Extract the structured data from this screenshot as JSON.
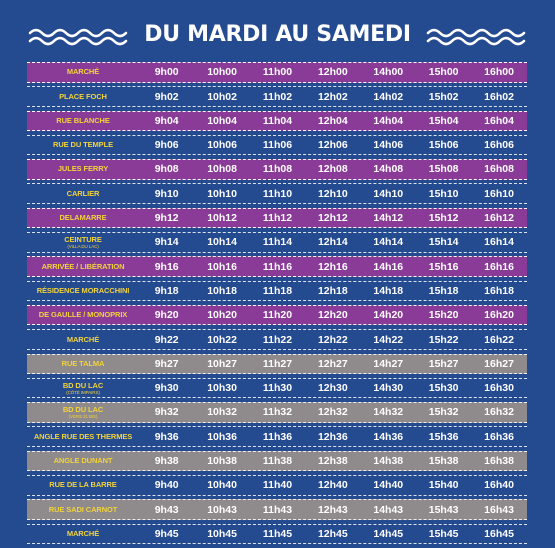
{
  "title": "DU MARDI AU SAMEDI",
  "rows": [
    {
      "stop": "MARCHÉ",
      "sub": "",
      "color": "purple",
      "times": [
        "9h00",
        "10h00",
        "11h00",
        "12h00",
        "14h00",
        "15h00",
        "16h00"
      ]
    },
    {
      "stop": "PLACE FOCH",
      "sub": "",
      "color": "blue",
      "times": [
        "9h02",
        "10h02",
        "11h02",
        "12h02",
        "14h02",
        "15h02",
        "16h02"
      ]
    },
    {
      "stop": "RUE BLANCHE",
      "sub": "",
      "color": "purple",
      "times": [
        "9h04",
        "10h04",
        "11h04",
        "12h04",
        "14h04",
        "15h04",
        "16h04"
      ]
    },
    {
      "stop": "RUE DU TEMPLE",
      "sub": "",
      "color": "blue",
      "times": [
        "9h06",
        "10h06",
        "11h06",
        "12h06",
        "14h06",
        "15h06",
        "16h06"
      ]
    },
    {
      "stop": "JULES FERRY",
      "sub": "",
      "color": "purple",
      "times": [
        "9h08",
        "10h08",
        "11h08",
        "12h08",
        "14h08",
        "15h08",
        "16h08"
      ]
    },
    {
      "stop": "CARLIER",
      "sub": "",
      "color": "blue",
      "times": [
        "9h10",
        "10h10",
        "11h10",
        "12h10",
        "14h10",
        "15h10",
        "16h10"
      ]
    },
    {
      "stop": "DELAMARRE",
      "sub": "",
      "color": "purple",
      "times": [
        "9h12",
        "10h12",
        "11h12",
        "12h12",
        "14h12",
        "15h12",
        "16h12"
      ]
    },
    {
      "stop": "CEINTURE",
      "sub": "(VILLA DU LAC)",
      "color": "blue",
      "times": [
        "9h14",
        "10h14",
        "11h14",
        "12h14",
        "14h14",
        "15h14",
        "16h14"
      ]
    },
    {
      "stop": "ARRIVÉE / LIBÉRATION",
      "sub": "",
      "color": "purple",
      "times": [
        "9h16",
        "10h16",
        "11h16",
        "12h16",
        "14h16",
        "15h16",
        "16h16"
      ]
    },
    {
      "stop": "RÉSIDENCE MORACCHINI",
      "sub": "",
      "color": "blue",
      "times": [
        "9h18",
        "10h18",
        "11h18",
        "12h18",
        "14h18",
        "15h18",
        "16h18"
      ]
    },
    {
      "stop": "DE GAULLE / MONOPRIX",
      "sub": "",
      "color": "purple",
      "times": [
        "9h20",
        "10h20",
        "11h20",
        "12h20",
        "14h20",
        "15h20",
        "16h20"
      ]
    },
    {
      "stop": "MARCHÉ",
      "sub": "",
      "color": "blue",
      "times": [
        "9h22",
        "10h22",
        "11h22",
        "12h22",
        "14h22",
        "15h22",
        "16h22"
      ]
    },
    {
      "stop": "RUE TALMA",
      "sub": "",
      "color": "gray",
      "times": [
        "9h27",
        "10h27",
        "11h27",
        "12h27",
        "14h27",
        "15h27",
        "16h27"
      ]
    },
    {
      "stop": "BD DU LAC",
      "sub": "(CÔTÉ IMPAIRS)",
      "color": "blue",
      "times": [
        "9h30",
        "10h30",
        "11h30",
        "12h30",
        "14h30",
        "15h30",
        "16h30"
      ]
    },
    {
      "stop": "BD DU LAC",
      "sub": "(VERS 21 BIS)",
      "color": "gray",
      "times": [
        "9h32",
        "10h32",
        "11h32",
        "12h32",
        "14h32",
        "15h32",
        "16h32"
      ]
    },
    {
      "stop": "ANGLE RUE DES THERMES",
      "sub": "",
      "color": "blue",
      "times": [
        "9h36",
        "10h36",
        "11h36",
        "12h36",
        "14h36",
        "15h36",
        "16h36"
      ]
    },
    {
      "stop": "ANGLE DUNANT",
      "sub": "",
      "color": "gray",
      "times": [
        "9h38",
        "10h38",
        "11h38",
        "12h38",
        "14h38",
        "15h38",
        "16h38"
      ]
    },
    {
      "stop": "RUE DE LA BARRE",
      "sub": "",
      "color": "blue",
      "times": [
        "9h40",
        "10h40",
        "11h40",
        "12h40",
        "14h40",
        "15h40",
        "16h40"
      ]
    },
    {
      "stop": "RUE SADI CARNOT",
      "sub": "",
      "color": "gray",
      "times": [
        "9h43",
        "10h43",
        "11h43",
        "12h43",
        "14h43",
        "15h43",
        "16h43"
      ]
    },
    {
      "stop": "MARCHÉ",
      "sub": "",
      "color": "blue",
      "times": [
        "9h45",
        "10h45",
        "11h45",
        "12h45",
        "14h45",
        "15h45",
        "16h45"
      ]
    }
  ]
}
